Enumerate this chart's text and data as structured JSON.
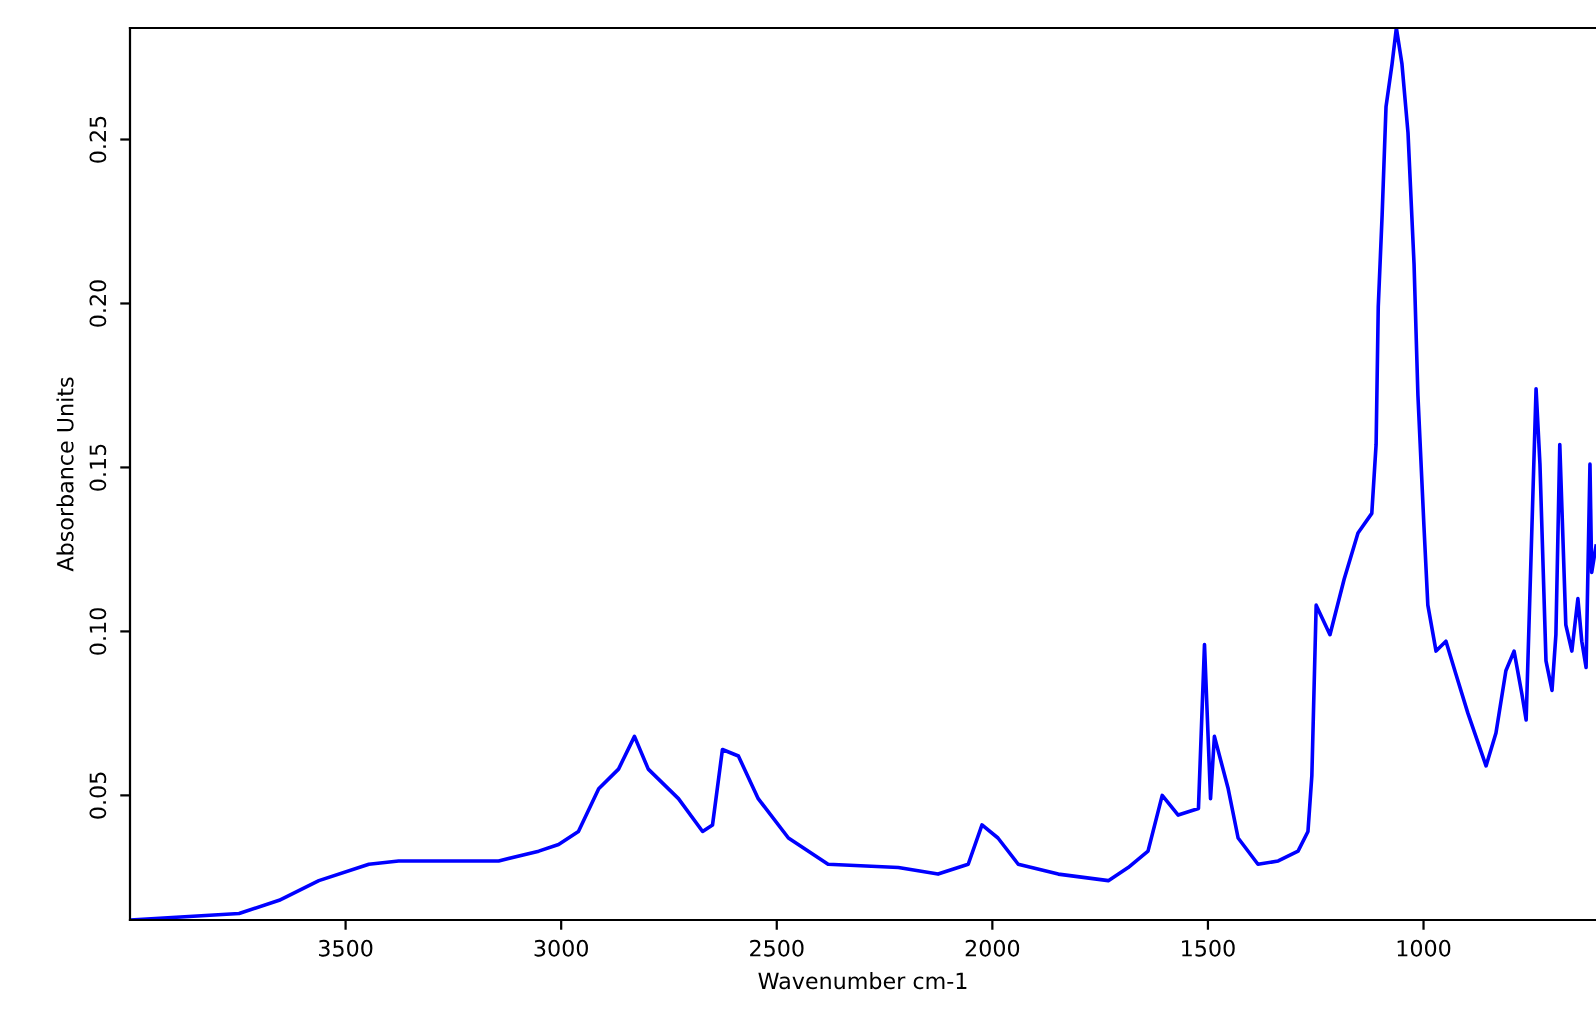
{
  "chart_data": {
    "type": "line",
    "xlabel": "Wavenumber cm-1",
    "ylabel": "Absorbance Units",
    "xlim": [
      4000,
      600
    ],
    "ylim": [
      0.012,
      0.284
    ],
    "xticks": [
      3500,
      3000,
      2500,
      2000,
      1500,
      1000
    ],
    "yticks": [
      {
        "value": 0.05,
        "label": "0.05"
      },
      {
        "value": 0.1,
        "label": "0.10"
      },
      {
        "value": 0.15,
        "label": "0.15"
      },
      {
        "value": 0.2,
        "label": "0.20"
      },
      {
        "value": 0.25,
        "label": "0.25"
      }
    ],
    "grid": false,
    "marker": "none",
    "line_style": "solid",
    "series": [
      {
        "color": "#0000ff",
        "x": [
          4000,
          3747,
          3654,
          3562,
          3446,
          3377,
          3145,
          3052,
          3006,
          2960,
          2913,
          2867,
          2830,
          2798,
          2728,
          2672,
          2649,
          2626,
          2589,
          2543,
          2473,
          2381,
          2218,
          2126,
          2056,
          2024,
          1987,
          1940,
          1847,
          1731,
          1685,
          1639,
          1606,
          1569,
          1522,
          1508,
          1494,
          1485,
          1453,
          1430,
          1384,
          1337,
          1291,
          1268,
          1259,
          1249,
          1217,
          1184,
          1152,
          1120,
          1110,
          1105,
          1096,
          1087,
          1073,
          1063,
          1050,
          1036,
          1022,
          1013,
          999,
          990,
          971,
          948,
          925,
          897,
          855,
          832,
          809,
          790,
          772,
          762,
          739,
          730,
          716,
          702,
          693,
          684,
          670,
          656,
          642,
          633,
          623,
          614,
          610,
          600
        ],
        "values": [
          0.012,
          0.014,
          0.018,
          0.024,
          0.029,
          0.03,
          0.03,
          0.033,
          0.035,
          0.039,
          0.052,
          0.058,
          0.068,
          0.058,
          0.049,
          0.039,
          0.041,
          0.064,
          0.062,
          0.049,
          0.037,
          0.029,
          0.028,
          0.026,
          0.029,
          0.041,
          0.037,
          0.029,
          0.026,
          0.024,
          0.028,
          0.033,
          0.05,
          0.044,
          0.046,
          0.096,
          0.049,
          0.068,
          0.052,
          0.037,
          0.029,
          0.03,
          0.033,
          0.039,
          0.056,
          0.108,
          0.099,
          0.116,
          0.13,
          0.136,
          0.157,
          0.199,
          0.227,
          0.26,
          0.273,
          0.284,
          0.273,
          0.252,
          0.212,
          0.172,
          0.132,
          0.108,
          0.094,
          0.097,
          0.087,
          0.075,
          0.059,
          0.069,
          0.088,
          0.094,
          0.081,
          0.073,
          0.174,
          0.151,
          0.091,
          0.082,
          0.099,
          0.157,
          0.102,
          0.094,
          0.11,
          0.097,
          0.089,
          0.151,
          0.118,
          0.126
        ]
      }
    ]
  }
}
